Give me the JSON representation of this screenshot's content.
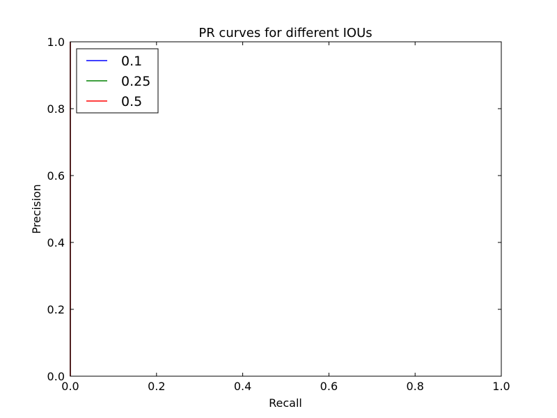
{
  "chart_data": {
    "type": "line",
    "title": "PR curves for different IOUs",
    "xlabel": "Recall",
    "ylabel": "Precision",
    "xlim": [
      0.0,
      1.0
    ],
    "ylim": [
      0.0,
      1.0
    ],
    "xticks": [
      "0.0",
      "0.2",
      "0.4",
      "0.6",
      "0.8",
      "1.0"
    ],
    "yticks": [
      "0.0",
      "0.2",
      "0.4",
      "0.6",
      "0.8",
      "1.0"
    ],
    "grid": false,
    "legend_position": "top-left",
    "series": [
      {
        "name": "0.1",
        "color": "#0000ff",
        "x": [
          0.0,
          0.0
        ],
        "y": [
          0.0,
          1.0
        ]
      },
      {
        "name": "0.25",
        "color": "#008000",
        "x": [
          0.0,
          0.0
        ],
        "y": [
          0.0,
          1.0
        ]
      },
      {
        "name": "0.5",
        "color": "#ff0000",
        "x": [
          0.0,
          0.0
        ],
        "y": [
          0.0,
          1.0
        ]
      }
    ]
  }
}
